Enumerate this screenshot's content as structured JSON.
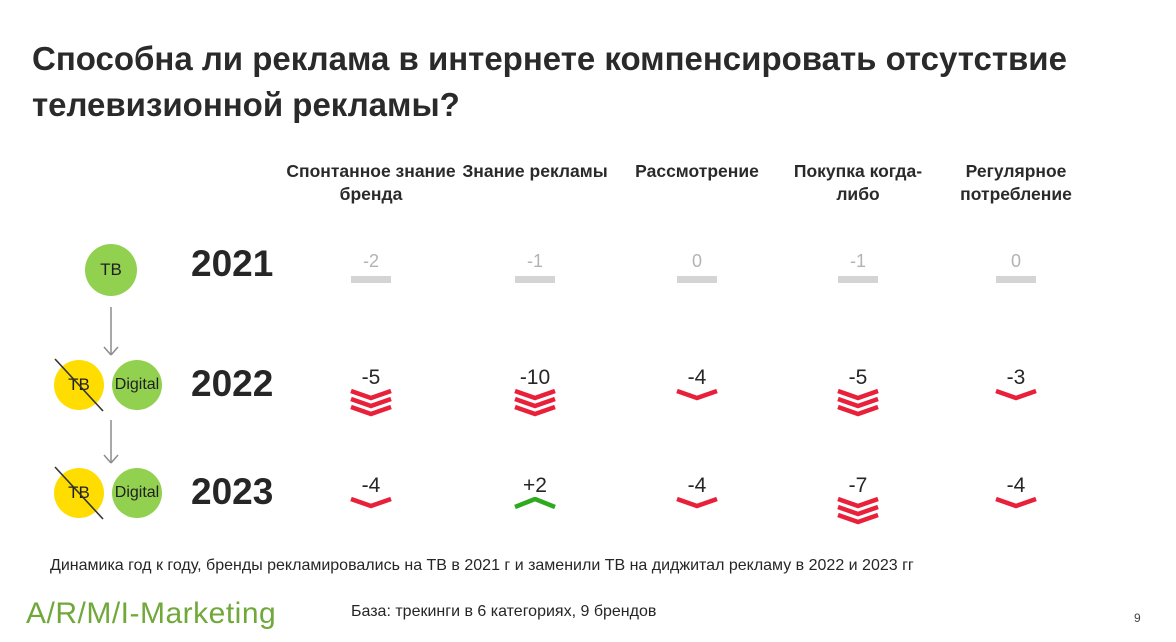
{
  "title": "Способна ли реклама в интернете компенсировать отсутствие телевизионной рекламы?",
  "channels": {
    "tv": "ТВ",
    "digital": "Digital"
  },
  "colors": {
    "tv_circle": "#92d050",
    "digital_circle": "#92d050",
    "struck_tv_circle": "#ffdd00",
    "decline": "#e8203a",
    "increase": "#2eaa1e",
    "neutral": "#d4d4d4",
    "logo": "#70a83a"
  },
  "chart_data": {
    "type": "table",
    "columns": [
      "Спонтанное знание бренда",
      "Знание рекламы",
      "Рассмотрение",
      "Покупка когда-либо",
      "Регулярное потребление"
    ],
    "rows": [
      {
        "year": "2021",
        "channels_label": "ТВ",
        "values": [
          "-2",
          "-1",
          "0",
          "-1",
          "0"
        ]
      },
      {
        "year": "2022",
        "channels_label": "ТВ → Digital",
        "values": [
          "-5",
          "-10",
          "-4",
          "-5",
          "-3"
        ]
      },
      {
        "year": "2023",
        "channels_label": "ТВ → Digital",
        "values": [
          "-4",
          "+2",
          "-4",
          "-7",
          "-4"
        ]
      }
    ]
  },
  "footnote": "Динамика год к году, бренды рекламировались на ТВ в 2021 г и заменили ТВ на диджитал рекламу в 2022 и 2023 гг",
  "logo": "A/R/M/I-Marketing",
  "base_note": "База: трекинги в 6 категориях, 9 брендов",
  "page_number": "9"
}
